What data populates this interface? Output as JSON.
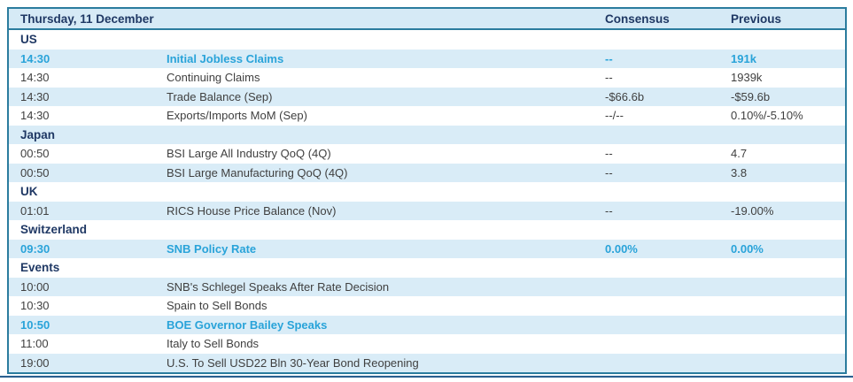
{
  "header": {
    "title": "Thursday, 11 December",
    "consensus_label": "Consensus",
    "previous_label": "Previous"
  },
  "colors": {
    "border_teal": "#2b7c9e",
    "stripe_blue": "#d9ecf7",
    "header_blue": "#d6eaf6",
    "navy_text": "#1f3864",
    "highlight_cyan": "#29a3d9",
    "body_text": "#404040",
    "bottom_rule_blue": "#2a5f8f"
  },
  "rows": [
    {
      "type": "section",
      "label": "US"
    },
    {
      "type": "event",
      "time": "14:30",
      "name": "Initial Jobless Claims",
      "consensus": "--",
      "previous": "191k",
      "highlight": true
    },
    {
      "type": "event",
      "time": "14:30",
      "name": "Continuing Claims",
      "consensus": "--",
      "previous": "1939k",
      "highlight": false
    },
    {
      "type": "event",
      "time": "14:30",
      "name": "Trade Balance (Sep)",
      "consensus": "-$66.6b",
      "previous": "-$59.6b",
      "highlight": false
    },
    {
      "type": "event",
      "time": "14:30",
      "name": "Exports/Imports MoM (Sep)",
      "consensus": "--/--",
      "previous": "0.10%/-5.10%",
      "highlight": false
    },
    {
      "type": "section",
      "label": "Japan"
    },
    {
      "type": "event",
      "time": "00:50",
      "name": "BSI Large All Industry QoQ (4Q)",
      "consensus": "--",
      "previous": "4.7",
      "highlight": false
    },
    {
      "type": "event",
      "time": "00:50",
      "name": "BSI Large Manufacturing QoQ (4Q)",
      "consensus": "--",
      "previous": "3.8",
      "highlight": false
    },
    {
      "type": "section",
      "label": "UK"
    },
    {
      "type": "event",
      "time": "01:01",
      "name": "RICS House Price Balance (Nov)",
      "consensus": "--",
      "previous": "-19.00%",
      "highlight": false
    },
    {
      "type": "section",
      "label": "Switzerland"
    },
    {
      "type": "event",
      "time": "09:30",
      "name": "SNB Policy Rate",
      "consensus": "0.00%",
      "previous": "0.00%",
      "highlight": true
    },
    {
      "type": "section",
      "label": "Events"
    },
    {
      "type": "event",
      "time": "10:00",
      "name": "SNB's Schlegel Speaks After Rate Decision",
      "consensus": "",
      "previous": "",
      "highlight": false
    },
    {
      "type": "event",
      "time": "10:30",
      "name": "Spain to Sell Bonds",
      "consensus": "",
      "previous": "",
      "highlight": false
    },
    {
      "type": "event",
      "time": "10:50",
      "name": "BOE Governor Bailey Speaks",
      "consensus": "",
      "previous": "",
      "highlight": true
    },
    {
      "type": "event",
      "time": "11:00",
      "name": "Italy to Sell Bonds",
      "consensus": "",
      "previous": "",
      "highlight": false
    },
    {
      "type": "event",
      "time": "19:00",
      "name": "U.S. To Sell USD22 Bln 30-Year Bond Reopening",
      "consensus": "",
      "previous": "",
      "highlight": false
    }
  ]
}
